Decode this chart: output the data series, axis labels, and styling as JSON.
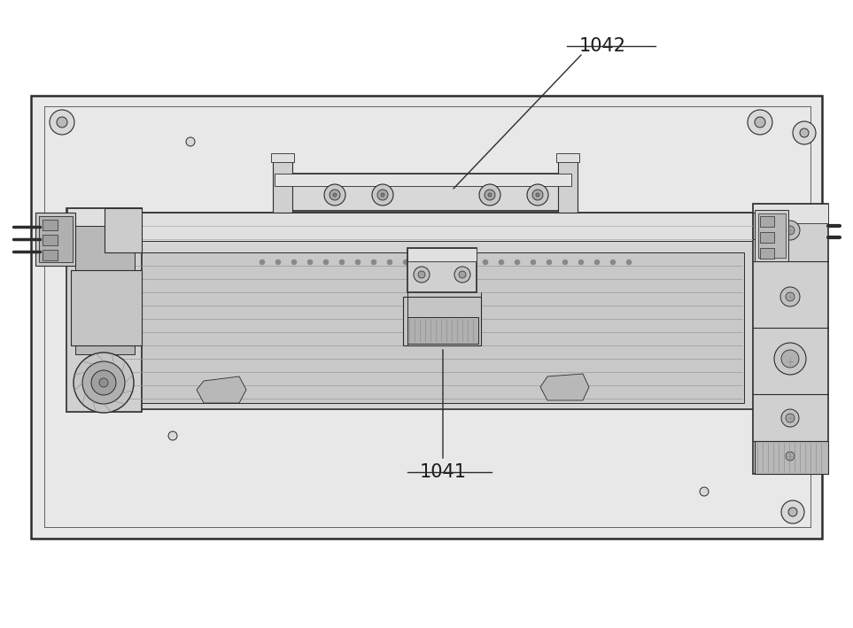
{
  "bg_color": "#ffffff",
  "label_1041": "1041",
  "label_1042": "1042",
  "line_color": "#2c2c2c",
  "line_color_light": "#666666",
  "fill_plate": "#e8e8e8",
  "fill_medium": "#d0d0d0",
  "fill_dark": "#aaaaaa",
  "fill_white": "#f5f5f5",
  "annotation_color": "#1a1a1a",
  "shadow_color": "#bbbbbb"
}
